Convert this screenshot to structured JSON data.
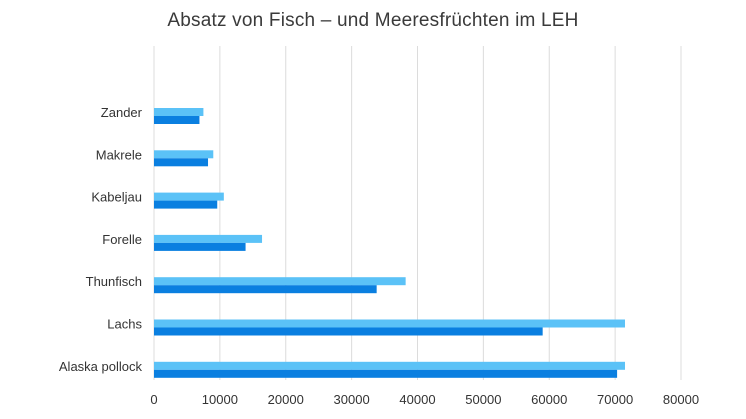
{
  "chart_data": {
    "type": "bar",
    "orientation": "horizontal",
    "title": "Absatz von Fisch – und Meeresfrüchten im LEH",
    "categories": [
      "Zander",
      "Makrele",
      "Kabeljau",
      "Forelle",
      "Thunfisch",
      "Lachs",
      "Alaska pollock"
    ],
    "series": [
      {
        "color": "#5bc2f7",
        "values": [
          7500,
          9000,
          10600,
          16400,
          38200,
          71500,
          71500
        ]
      },
      {
        "color": "#0a7fe0",
        "values": [
          6900,
          8200,
          9600,
          13900,
          33800,
          59000,
          70300
        ]
      }
    ],
    "xlim": [
      0,
      80000
    ],
    "xticks": [
      "0",
      "10000",
      "20000",
      "30000",
      "40000",
      "50000",
      "60000",
      "70000",
      "80000"
    ],
    "grid": "vertical",
    "legend": "none"
  }
}
